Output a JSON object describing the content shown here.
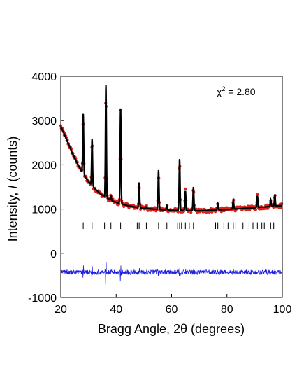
{
  "chart_data": {
    "type": "scatter",
    "title": "",
    "xlabel_prefix": "Bragg Angle, 2",
    "xlabel_theta": "θ",
    "xlabel_suffix": " (degrees)",
    "ylabel_prefix": "Intensity, ",
    "ylabel_italic": "I",
    "ylabel_suffix": " (counts)",
    "annotation_main": "χ",
    "annotation_sup": "2",
    "annotation_rest": " = 2.80",
    "xlim": [
      20,
      100
    ],
    "ylim": [
      -1000,
      4000
    ],
    "xticks": [
      20,
      40,
      60,
      80,
      100
    ],
    "yticks": [
      -1000,
      0,
      1000,
      2000,
      3000,
      4000
    ],
    "grid": false,
    "colors": {
      "observed": "#e0201b",
      "calculated": "#000000",
      "difference": "#1f1fe0",
      "ticks": "#000000"
    },
    "background": {
      "description_points_x_y": [
        [
          20,
          2870
        ],
        [
          22,
          2590
        ],
        [
          24,
          2290
        ],
        [
          26,
          2030
        ],
        [
          28,
          1800
        ],
        [
          30,
          1620
        ],
        [
          32,
          1480
        ],
        [
          34,
          1360
        ],
        [
          36,
          1270
        ],
        [
          38,
          1200
        ],
        [
          40,
          1150
        ],
        [
          44,
          1080
        ],
        [
          48,
          1030
        ],
        [
          55,
          990
        ],
        [
          60,
          970
        ],
        [
          70,
          960
        ],
        [
          80,
          990
        ],
        [
          90,
          1030
        ],
        [
          100,
          1080
        ]
      ]
    },
    "peaks": [
      {
        "x": 28.1,
        "y": 3150
      },
      {
        "x": 31.3,
        "y": 2580
      },
      {
        "x": 36.3,
        "y": 3800
      },
      {
        "x": 38.1,
        "y": 1300
      },
      {
        "x": 41.6,
        "y": 3260
      },
      {
        "x": 48.3,
        "y": 1600
      },
      {
        "x": 50.9,
        "y": 1050
      },
      {
        "x": 55.3,
        "y": 1880
      },
      {
        "x": 58.3,
        "y": 1080
      },
      {
        "x": 62.9,
        "y": 2130
      },
      {
        "x": 65.0,
        "y": 1410
      },
      {
        "x": 67.9,
        "y": 1500
      },
      {
        "x": 76.7,
        "y": 1130
      },
      {
        "x": 82.3,
        "y": 1210
      },
      {
        "x": 91.0,
        "y": 1300
      },
      {
        "x": 95.8,
        "y": 1220
      },
      {
        "x": 97.3,
        "y": 1330
      }
    ],
    "reflection_ticks_x": [
      28.1,
      31.3,
      35.8,
      38.1,
      41.6,
      47.6,
      48.3,
      50.9,
      55.3,
      58.3,
      62.2,
      62.9,
      63.6,
      65.0,
      66.4,
      67.9,
      75.9,
      76.7,
      78.9,
      80.4,
      82.3,
      83.2,
      85.8,
      88.0,
      89.4,
      91.0,
      92.6,
      93.5,
      95.8,
      96.8,
      97.3
    ],
    "reflection_tick_y_range": [
      700,
      550
    ],
    "difference_baseline_y": -430
  }
}
